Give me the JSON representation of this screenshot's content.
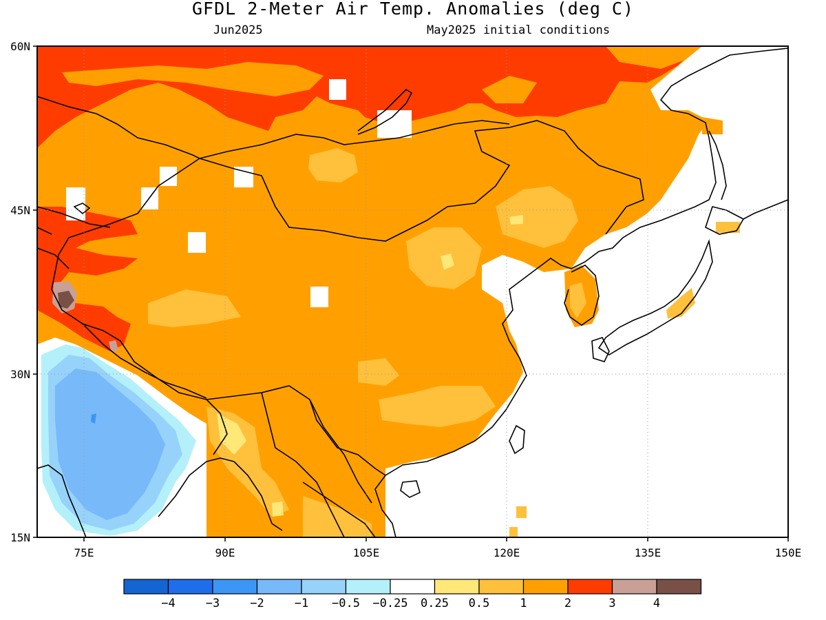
{
  "title": "GFDL 2-Meter Air Temp. Anomalies (deg C)",
  "valid_month": "Jun2025",
  "init_label": "May2025 initial conditions",
  "map": {
    "lon_ticks": [
      "75E",
      "90E",
      "105E",
      "120E",
      "135E",
      "150E"
    ],
    "lat_ticks": [
      "60N",
      "45N",
      "30N",
      "15N"
    ],
    "lon_range": [
      70,
      150
    ],
    "lat_range": [
      15,
      60
    ]
  },
  "colorbar": {
    "colors": [
      "#1464d2",
      "#1e6eeb",
      "#3c96f5",
      "#78b9fa",
      "#96d2fa",
      "#b4f0fa",
      "#ffffff",
      "#ffe878",
      "#ffc03c",
      "#ffa000",
      "#ff3c00",
      "#c8a096",
      "#785046"
    ],
    "labels": [
      "−4",
      "−3",
      "−2",
      "−1",
      "−0.5",
      "−0.25",
      "0.25",
      "0.5",
      "1",
      "2",
      "3",
      "4"
    ]
  }
}
